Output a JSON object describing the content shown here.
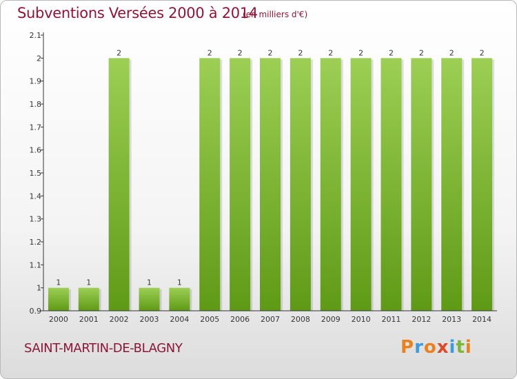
{
  "header": {
    "title": "Subventions Versées 2000 à 2014",
    "unit_note": "(en milliers d'€)"
  },
  "footer": {
    "commune": "SAINT-MARTIN-DE-BLAGNY",
    "logo_text": "Proxiti",
    "logo_colors": [
      "#e8821e",
      "#3d9be0",
      "#e8821e",
      "#d94a2a",
      "#3d9be0",
      "#7ab63a",
      "#e8821e"
    ]
  },
  "colors": {
    "accent": "#8b1538",
    "bar_top": "#9ccf54",
    "bar_bottom": "#5f9a16"
  },
  "chart_data": {
    "type": "bar",
    "title": "Subventions Versées 2000 à 2014",
    "subtitle": "(en milliers d'€)",
    "categories": [
      "2000",
      "2001",
      "2002",
      "2003",
      "2004",
      "2005",
      "2006",
      "2007",
      "2008",
      "2009",
      "2010",
      "2011",
      "2012",
      "2013",
      "2014"
    ],
    "values": [
      1,
      1,
      2,
      1,
      1,
      2,
      2,
      2,
      2,
      2,
      2,
      2,
      2,
      2,
      2
    ],
    "value_labels": [
      "1",
      "1",
      "2",
      "1",
      "1",
      "2",
      "2",
      "2",
      "2",
      "2",
      "2",
      "2",
      "2",
      "2",
      "2"
    ],
    "yticks": [
      "0.9",
      "1",
      "1.1",
      "1.2",
      "1.3",
      "1.4",
      "1.5",
      "1.6",
      "1.7",
      "1.8",
      "1.9",
      "2",
      "2.1"
    ],
    "ylim": [
      0.9,
      2.1
    ],
    "grid": false,
    "legend": "none"
  }
}
